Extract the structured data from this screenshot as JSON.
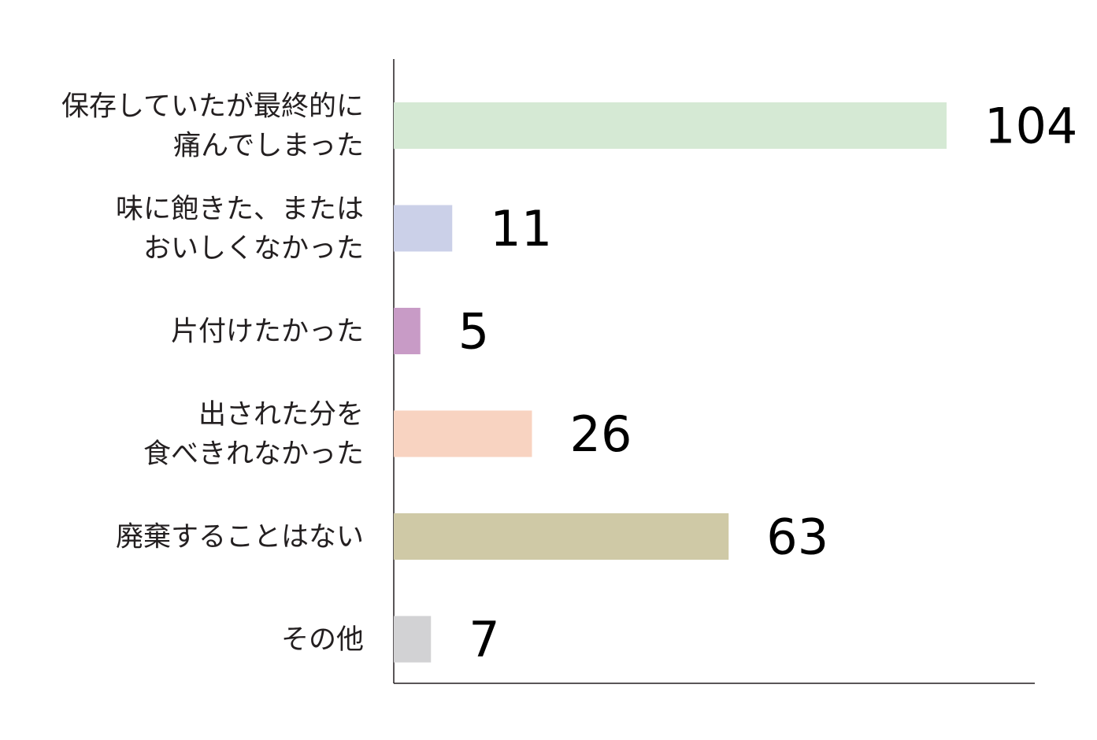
{
  "chart_data": {
    "type": "bar",
    "orientation": "horizontal",
    "categories": [
      [
        "保存していたが最終的に",
        "痛んでしまった"
      ],
      [
        "味に飽きた、または",
        "おいしくなかった"
      ],
      [
        "片付けたかった"
      ],
      [
        "出された分を",
        "食べきれなかった"
      ],
      [
        "廃棄することはない"
      ],
      [
        "その他"
      ]
    ],
    "values": [
      104,
      11,
      5,
      26,
      63,
      7
    ],
    "value_labels": [
      "104",
      "11",
      "5",
      "26",
      "63",
      "7"
    ],
    "colors": [
      "#d5e9d4",
      "#cbd0e8",
      "#c89bc6",
      "#f8d3c1",
      "#cfc9a6",
      "#d2d2d4"
    ],
    "title": "",
    "xlabel": "",
    "ylabel": "",
    "xlim": [
      0,
      120
    ],
    "grid": false,
    "legend": "none",
    "data_labels": true
  }
}
